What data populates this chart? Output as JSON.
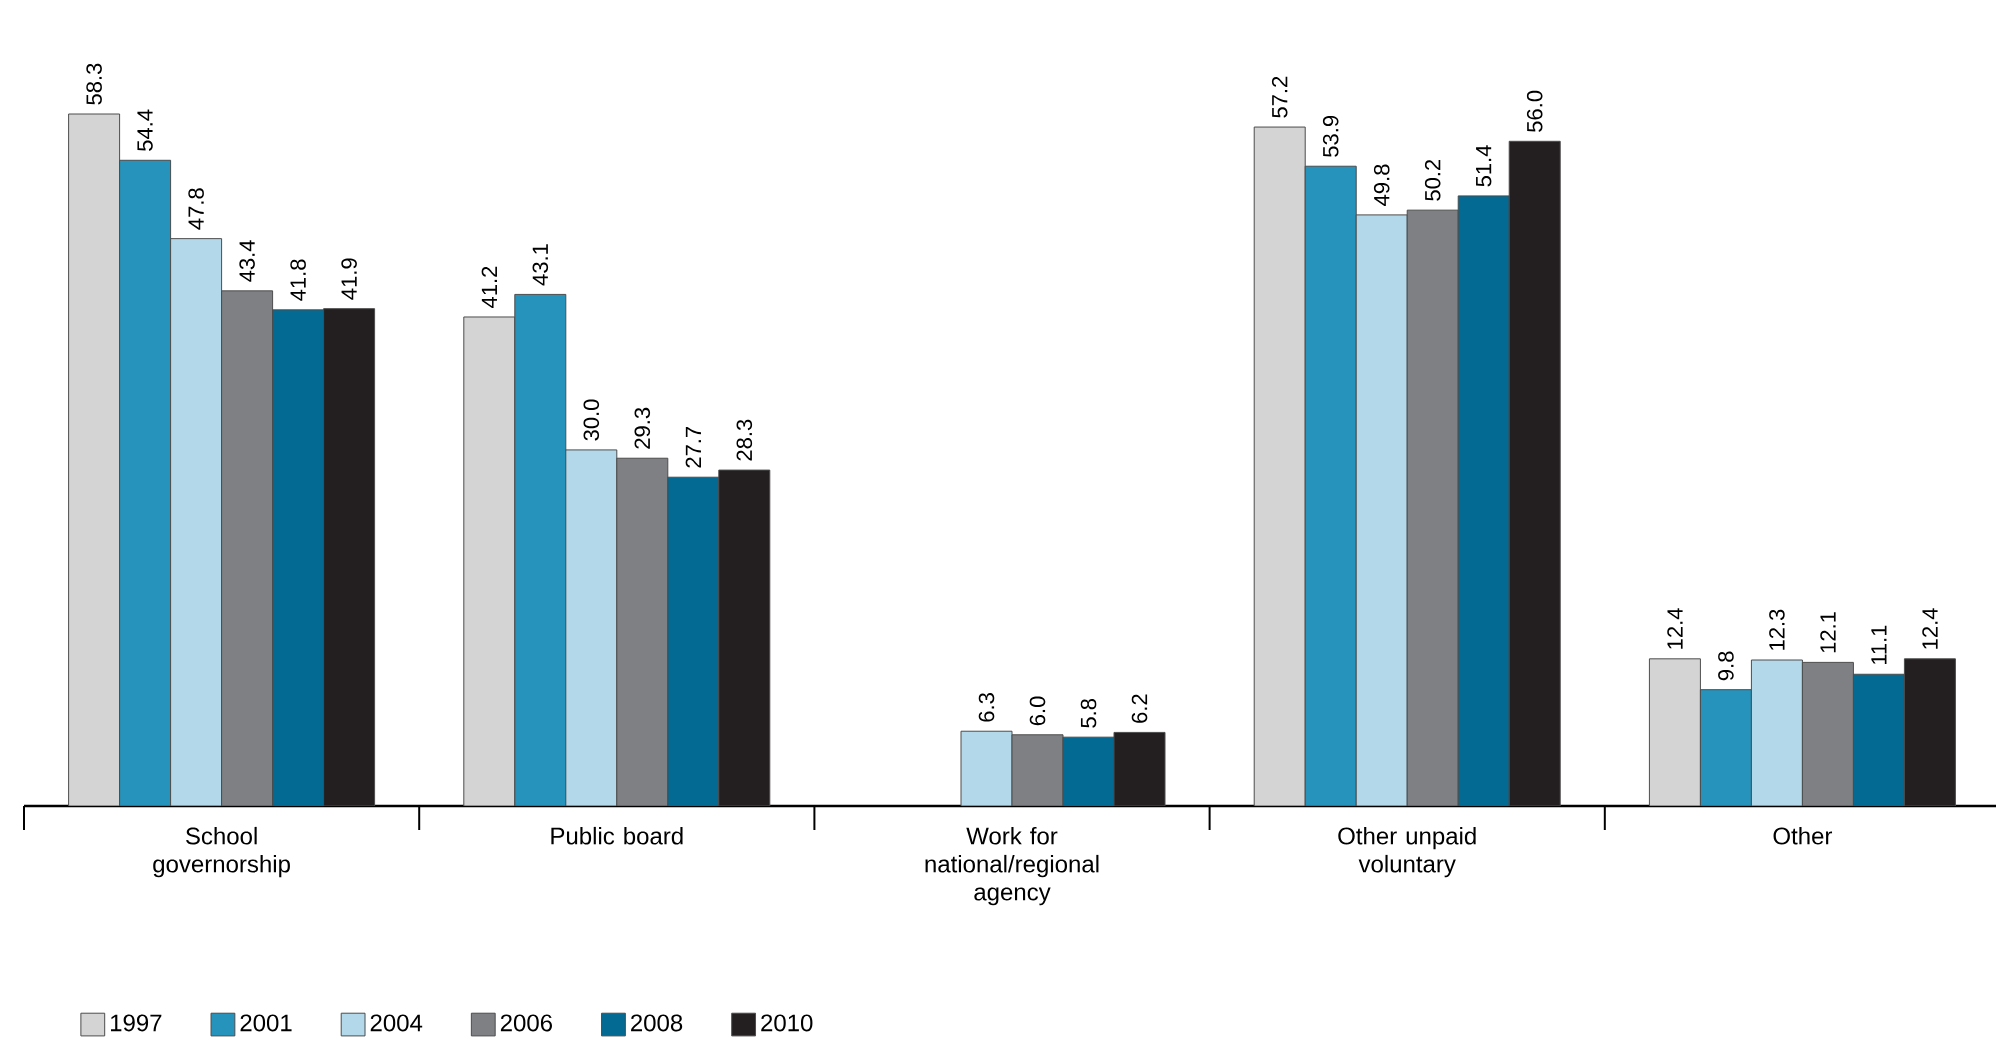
{
  "chart_data": {
    "type": "bar",
    "categories": [
      "School governorship",
      "Public board",
      "Work for national/regional agency",
      "Other unpaid voluntary",
      "Other"
    ],
    "series": [
      {
        "name": "1997",
        "color": "#d4d4d4",
        "values": [
          58.3,
          41.2,
          null,
          57.2,
          12.4
        ],
        "value_labels": [
          "58.3",
          "41.2",
          null,
          "57.2",
          "12.4"
        ]
      },
      {
        "name": "2001",
        "color": "#2593bb",
        "values": [
          54.4,
          43.1,
          null,
          53.9,
          9.8
        ],
        "value_labels": [
          "54.4",
          "43.1",
          null,
          "53.9",
          "9.8"
        ]
      },
      {
        "name": "2004",
        "color": "#b3d8ea",
        "values": [
          47.8,
          30.0,
          6.3,
          49.8,
          12.3
        ],
        "value_labels": [
          "47.8",
          "30.0",
          "6.3",
          "49.8",
          "12.3"
        ]
      },
      {
        "name": "2006",
        "color": "#7f8083",
        "values": [
          43.4,
          29.3,
          6.0,
          50.2,
          12.1
        ],
        "value_labels": [
          "43.4",
          "29.3",
          "6.0",
          "50.2",
          "12.1"
        ]
      },
      {
        "name": "2008",
        "color": "#026a93",
        "values": [
          41.8,
          27.7,
          5.8,
          51.4,
          11.1
        ],
        "value_labels": [
          "41.8",
          "27.7",
          "5.8",
          "51.4",
          "11.1"
        ]
      },
      {
        "name": "2010",
        "color": "#231f20",
        "values": [
          41.9,
          28.3,
          6.2,
          56.0,
          12.4
        ],
        "value_labels": [
          "41.9",
          "28.3",
          "6.2",
          "56.0",
          "12.4"
        ]
      }
    ],
    "legend": "bottom"
  }
}
